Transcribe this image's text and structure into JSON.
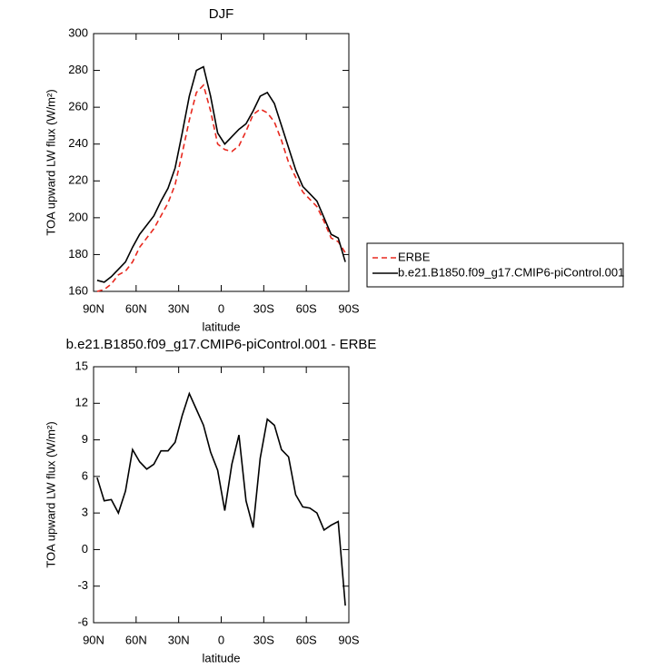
{
  "chart_data": [
    {
      "type": "line",
      "title": "DJF",
      "xlabel": "latitude",
      "ylabel": "TOA upward LW flux (W/m²)",
      "x": [
        87.5,
        82.5,
        77.5,
        72.5,
        67.5,
        62.5,
        57.5,
        52.5,
        47.5,
        42.5,
        37.5,
        32.5,
        27.5,
        22.5,
        17.5,
        12.5,
        7.5,
        2.5,
        -2.5,
        -7.5,
        -12.5,
        -17.5,
        -22.5,
        -27.5,
        -32.5,
        -37.5,
        -42.5,
        -47.5,
        -52.5,
        -57.5,
        -62.5,
        -67.5,
        -72.5,
        -77.5,
        -82.5,
        -87.5
      ],
      "series": [
        {
          "name": "ERBE",
          "color": "#e8281e",
          "dashed": true,
          "values": [
            160,
            161,
            164,
            169,
            171,
            176,
            184,
            189,
            194,
            201,
            208,
            218,
            235,
            253,
            268,
            272,
            258,
            240,
            237,
            236,
            239,
            247,
            256,
            259,
            257,
            252,
            242,
            230,
            222,
            214,
            210,
            206,
            198,
            189,
            187,
            181
          ]
        },
        {
          "name": "b.e21.B1850.f09_g17.CMIP6-piControl.001",
          "color": "#000000",
          "dashed": false,
          "values": [
            166,
            165,
            168,
            172,
            176,
            184,
            191,
            196,
            201,
            209,
            216,
            227,
            246,
            266,
            280,
            282,
            266,
            246,
            240,
            244,
            248,
            251,
            258,
            266,
            268,
            262,
            250,
            238,
            226,
            217,
            213,
            209,
            200,
            191,
            189,
            176
          ]
        }
      ],
      "xlim": [
        90,
        -90
      ],
      "xticks": [
        {
          "value": 90,
          "label": "90N"
        },
        {
          "value": 60,
          "label": "60N"
        },
        {
          "value": 30,
          "label": "30N"
        },
        0,
        {
          "value": -30,
          "label": "30S"
        },
        {
          "value": -60,
          "label": "60S"
        },
        {
          "value": -90,
          "label": "90S"
        }
      ],
      "ylim": [
        160,
        300
      ],
      "yticks": [
        160,
        180,
        200,
        220,
        240,
        260,
        280,
        300
      ],
      "legend": "right"
    },
    {
      "type": "line",
      "title": "b.e21.B1850.f09_g17.CMIP6-piControl.001 - ERBE",
      "xlabel": "latitude",
      "ylabel": "TOA upward LW flux (W/m²)",
      "x": [
        87.5,
        82.5,
        77.5,
        72.5,
        67.5,
        62.5,
        57.5,
        52.5,
        47.5,
        42.5,
        37.5,
        32.5,
        27.5,
        22.5,
        17.5,
        12.5,
        7.5,
        2.5,
        -2.5,
        -7.5,
        -12.5,
        -17.5,
        -22.5,
        -27.5,
        -32.5,
        -37.5,
        -42.5,
        -47.5,
        -52.5,
        -57.5,
        -62.5,
        -67.5,
        -72.5,
        -77.5,
        -82.5,
        -87.5
      ],
      "series": [
        {
          "color": "#000000",
          "dashed": false,
          "values": [
            5.9,
            4,
            4.1,
            3,
            4.8,
            8.2,
            7.2,
            6.6,
            7,
            8.1,
            8.1,
            8.8,
            11,
            12.8,
            11.5,
            10.2,
            8,
            6.5,
            3.2,
            7,
            9.4,
            4,
            1.8,
            7.5,
            10.7,
            10.2,
            8.2,
            7.6,
            4.5,
            3.5,
            3.4,
            3,
            1.6,
            2,
            2.3,
            -4.6
          ]
        }
      ],
      "xlim": [
        90,
        -90
      ],
      "xticks": [
        {
          "value": 90,
          "label": "90N"
        },
        {
          "value": 60,
          "label": "60N"
        },
        {
          "value": 30,
          "label": "30N"
        },
        0,
        {
          "value": -30,
          "label": "30S"
        },
        {
          "value": -60,
          "label": "60S"
        },
        {
          "value": -90,
          "label": "90S"
        }
      ],
      "ylim": [
        -6,
        15
      ],
      "yticks": [
        -6,
        -3,
        0,
        3,
        6,
        9,
        12,
        15
      ]
    }
  ]
}
